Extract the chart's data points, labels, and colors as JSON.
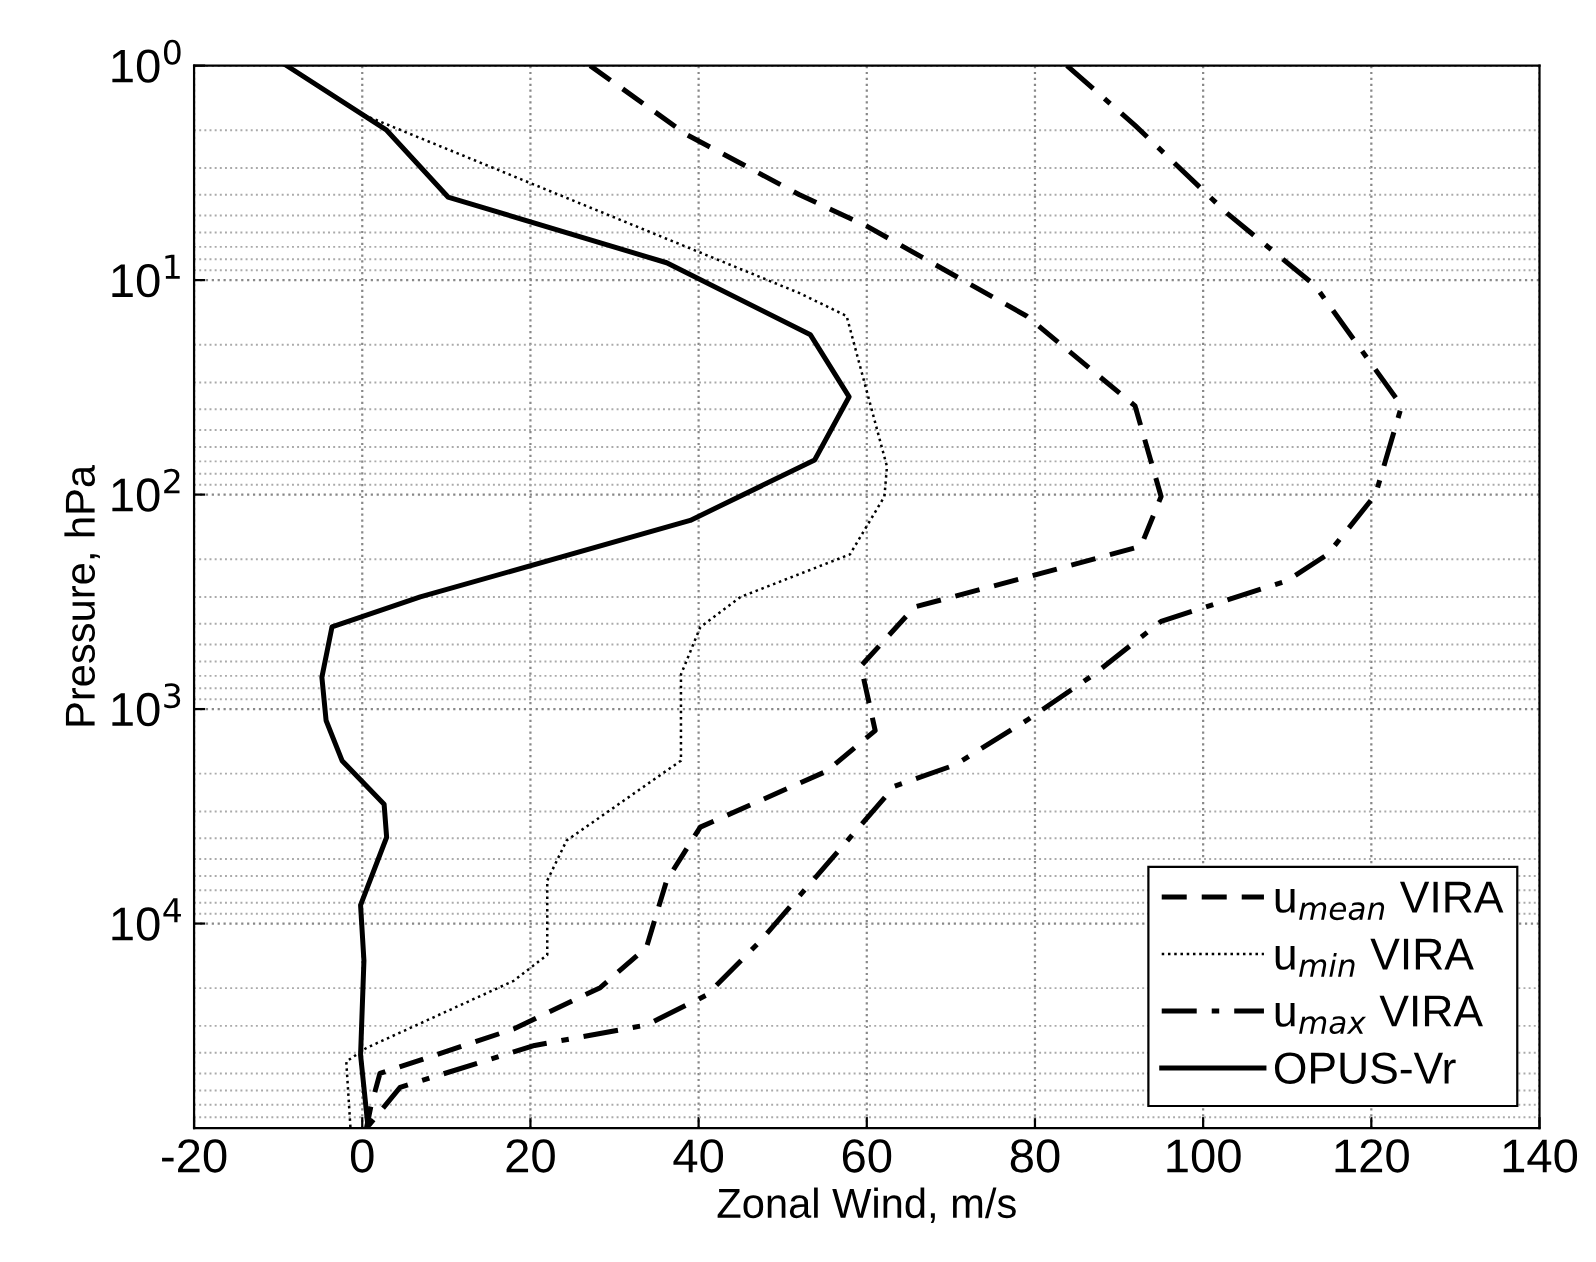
{
  "chart_data": {
    "type": "line",
    "xlabel": "Zonal Wind, m/s",
    "ylabel": "Pressure, hPa",
    "log": "y",
    "grid": true,
    "legend": "bottom right",
    "marker": "none",
    "xlim": [
      -20,
      140
    ],
    "xticks": [
      -20,
      0,
      20,
      40,
      60,
      80,
      100,
      120,
      140
    ],
    "ylim": [
      90000,
      1
    ],
    "yticks": [
      {
        "value": 1,
        "label": "10$^{0}$"
      },
      {
        "value": 10,
        "label": "10$^{1}$"
      },
      {
        "value": 100,
        "label": "10$^{2}$"
      },
      {
        "value": 1000,
        "label": "10$^{3}$"
      },
      {
        "value": 10000,
        "label": "10$^{4}$"
      }
    ],
    "series": [
      {
        "name": "u$_{mean}$ VIRA",
        "color": "#000000",
        "line_style": "dashed",
        "x": [
          27.1,
          38.6,
          52,
          60,
          79,
          91.9,
          95,
          92.6,
          80.7,
          65.7,
          59.3,
          61,
          55.2,
          40.2,
          36.2,
          33.8,
          28.3,
          18,
          2.1,
          1,
          0.5
        ],
        "values": [
          1,
          2.1,
          4,
          5.6,
          14.7,
          38.6,
          102,
          174,
          233,
          334,
          630,
          1260,
          1950,
          3550,
          6300,
          12900,
          19900,
          31000,
          50000,
          72000,
          90000
        ]
      },
      {
        "name": "u$_{min}$ VIRA",
        "color": "#000000",
        "line_style": "dotted",
        "x": [
          0.2,
          52,
          57.6,
          62.4,
          62.1,
          58,
          45,
          40.2,
          37.9,
          37.9,
          24.3,
          22,
          22,
          18,
          0.5,
          -1.9,
          -1.4
        ],
        "values": [
          1.7,
          11.5,
          14.7,
          74,
          102,
          190,
          300,
          415,
          690,
          1740,
          4100,
          6300,
          14000,
          18500,
          38000,
          44000,
          90000
        ]
      },
      {
        "name": "u$_{max}$ VIRA",
        "color": "#000000",
        "line_style": "dashdot",
        "x": [
          83.8,
          91.9,
          102.9,
          113.3,
          123.6,
          120.5,
          114.8,
          110,
          95,
          87,
          79,
          70.5,
          63.3,
          51.4,
          47.4,
          41,
          33.8,
          20.5,
          4.5,
          0.5
        ],
        "values": [
          1,
          1.9,
          4.9,
          10.6,
          38.6,
          100,
          190,
          252,
          390,
          690,
          1130,
          1820,
          2290,
          7900,
          12000,
          21500,
          29700,
          37000,
          58000,
          90000
        ]
      },
      {
        "name": "OPUS-Vr",
        "color": "#000000",
        "line_style": "solid",
        "x": [
          -9,
          2.9,
          10.2,
          36.2,
          53.3,
          57.9,
          53.8,
          39,
          6.9,
          -3.6,
          -4.8,
          -4.3,
          -2.4,
          2.6,
          2.9,
          -0.2,
          0.2,
          -0.2,
          0.7
        ],
        "values": [
          1,
          2,
          4.1,
          8.3,
          18,
          35,
          69,
          132,
          300,
          414,
          710,
          1130,
          1740,
          2780,
          3960,
          8200,
          14900,
          41000,
          90000
        ]
      }
    ]
  }
}
